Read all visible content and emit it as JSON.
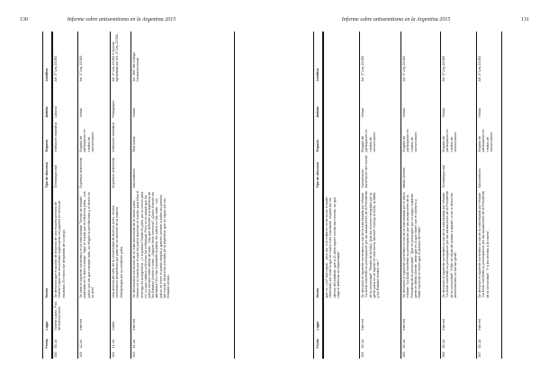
{
  "running_title": "Informe sobre antisemitismo en la Argentina 2015",
  "columns": [
    "",
    "Fecha",
    "Lugar",
    "Hecho",
    "Tipo de discurso",
    "Espacio",
    "Ámbito",
    "Justifica"
  ],
  "pages": [
    {
      "number": "130",
      "rows": [
        [
          "300",
          "09-Jul",
          "Vicente López, Pcia. de Buenos Aires",
          "Se denunció que el auxiliar de limpieza de una escuela primaria de Vicente López fue encontrado organizando los papeles en forma de esvástica. El mismo fue despedido de su cargo.",
          "Simbología nazi",
          "Institución educativa",
          "Laboral",
          "Art. 3° Ley 23.592."
        ],
        [
          "301",
          "11-Jul",
          "Internet",
          "Se halló el siguiente comentario en la nota titulada \"Tiempo de estudio\" publicada en el diario Infobae: \"Aquí el mundo por la influencia judía... Los judíos son los que manejan todo, su religión lo permite todo y el dinero es su dios\".",
          "Expresión antisemita",
          "Espacio de participación en medios de comunicación",
          "Virtual",
          "Art. 3° Ley 23.592."
        ],
        [
          "302",
          "14-Jul",
          "CABA",
          "Una alumna del CBC de la Universidad de Buenos Aires, recibió comentarios despectivos por parte de un docente de la materia Antropología por su condición judía.",
          "Expresión antisemita",
          "Institución educativa",
          "Pedagógico",
          "Art. 3° Ley 23.592 e Injurias agravadas por Art. 2° Ley 23.592."
        ],
        [
          "303",
          "14-Jul",
          "Internet",
          "Se denunciaron los dichos de un culto dominante de la nación judía... Hebreo es el invento por el cual los judíos dominan el mundo; para ellos el enemigo es la Argentina. ¿Y el pueblo? Nadie es judío, por lo menos para mí. Lo que mataron a Nisman fue el Mossad. Pero no es casual que los judíos siempre estén detrás de todo... Hay que defender a la Argentina de los Estados Unidos e Israel; ¿Alguien tiene memoria? ¿Quién financió los atentados? Es más importante la patria. Sin patria no hay nada... Los judíos se creen el pueblo elegido y quieren someter a todos los pueblos del mundo. Afuera los sionistas de la Argentina, que se vayan con los Estados Unidos.",
          "Nacionalismo",
          "Red social",
          "Virtual",
          "Art. 109° del Código Contravencional."
        ]
      ]
    },
    {
      "number": "131",
      "rows": [
        [
          "",
          "",
          "",
          "que no, ¿no? claro igual... pero ojo, si lo mataron no sería por el poder intelectual; por ende lo que se mucho más importante, respeto por los últimos del estallido, que a 21 años siguen siendo las mismas, sin que haya el detenido al responsable\".",
          "",
          "",
          "",
          ""
        ],
        [
          "304",
          "15-Jul",
          "Internet",
          "Se denunció el siguiente comentario a raíz de la nota titulada por Infobae: \"La DAIA manifestó su preocupación por las acusaciones de la Presidenta de la comunidad\": \"Restos de la DAIA. Que los mismos manejados por la gente judía no se dignan en otra forma, también maneja la DAIA, la AMIA y los Estados Unidos, etc.\"",
          "Conspiración dominación del mundo",
          "Espacio de participación en medios de comunicación",
          "Virtual",
          "Art. 3° Ley 23.592"
        ],
        [
          "305",
          "15-Jul",
          "Internet",
          "Se denunció el siguiente comentario a raíz de la nota titulada por el diario Infobae: \"La DAIA manifestó su preocupación por las acusaciones de la Presidenta de la comunidad\": \"Que se preocupen por no seguir matando gente en Medio Oriente, debe que es lo que hacen con el sionismo y están haciendo lo mismo que el asesino de Hitler\".",
          "Medio Oriente",
          "Espacio de participación en medios de comunicación",
          "Virtual",
          "Art. 3° Ley 23.592"
        ],
        [
          "306",
          "15-Jul",
          "Internet",
          "Se denunció el siguiente comentario a raíz de la nota titulada por Infobae: \"La DAIA manifestó su preocupación por las acusaciones de la Presidenta de la comunidad\": \"Hitler se olvidó de acabar a alguien, a ver si ahora los descendientes no fue tan gentil\".",
          "Simbología nazi",
          "Espacio de participación en medios de comunicación",
          "Virtual",
          "Art. 3° Ley 23.592"
        ],
        [
          "307",
          "15-Jul",
          "Internet",
          "Se denunció el siguiente comentario a raíz de la nota titulada por Infobae: \"La DAIA manifestó su preocupación por las acusaciones de la Presidenta de la comunidad\": \"Y a los semitas a la marea\".",
          "Nacionalismo",
          "Espacio de participación en medios de comunicación",
          "Virtual",
          "Art. 3° Ley 23.592"
        ]
      ]
    }
  ]
}
